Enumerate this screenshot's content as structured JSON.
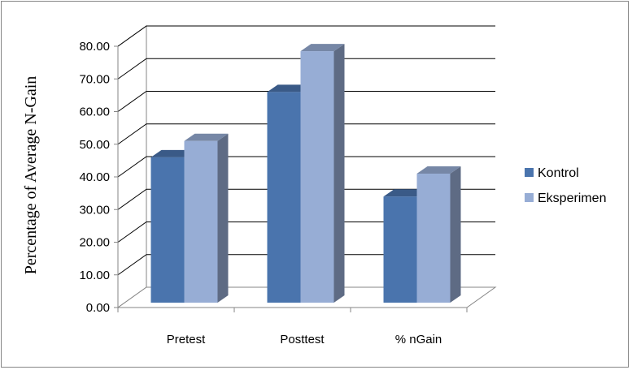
{
  "chart_data": {
    "type": "bar",
    "style": "3d-clustered-column",
    "title": "",
    "xlabel": "",
    "ylabel": "Percentage of Average N-Gain",
    "categories": [
      "Pretest",
      "Posttest",
      "% nGain"
    ],
    "series": [
      {
        "name": "Kontrol",
        "values": [
          44.5,
          64.5,
          32.5
        ],
        "color": "#4a74ad"
      },
      {
        "name": "Eksperimen",
        "values": [
          49.5,
          77.0,
          39.5
        ],
        "color": "#97add5"
      }
    ],
    "ylim": [
      0,
      80
    ],
    "yticks": [
      "0.00",
      "10.00",
      "20.00",
      "30.00",
      "40.00",
      "50.00",
      "60.00",
      "70.00",
      "80.00"
    ],
    "grid": true,
    "legend_position": "right"
  }
}
